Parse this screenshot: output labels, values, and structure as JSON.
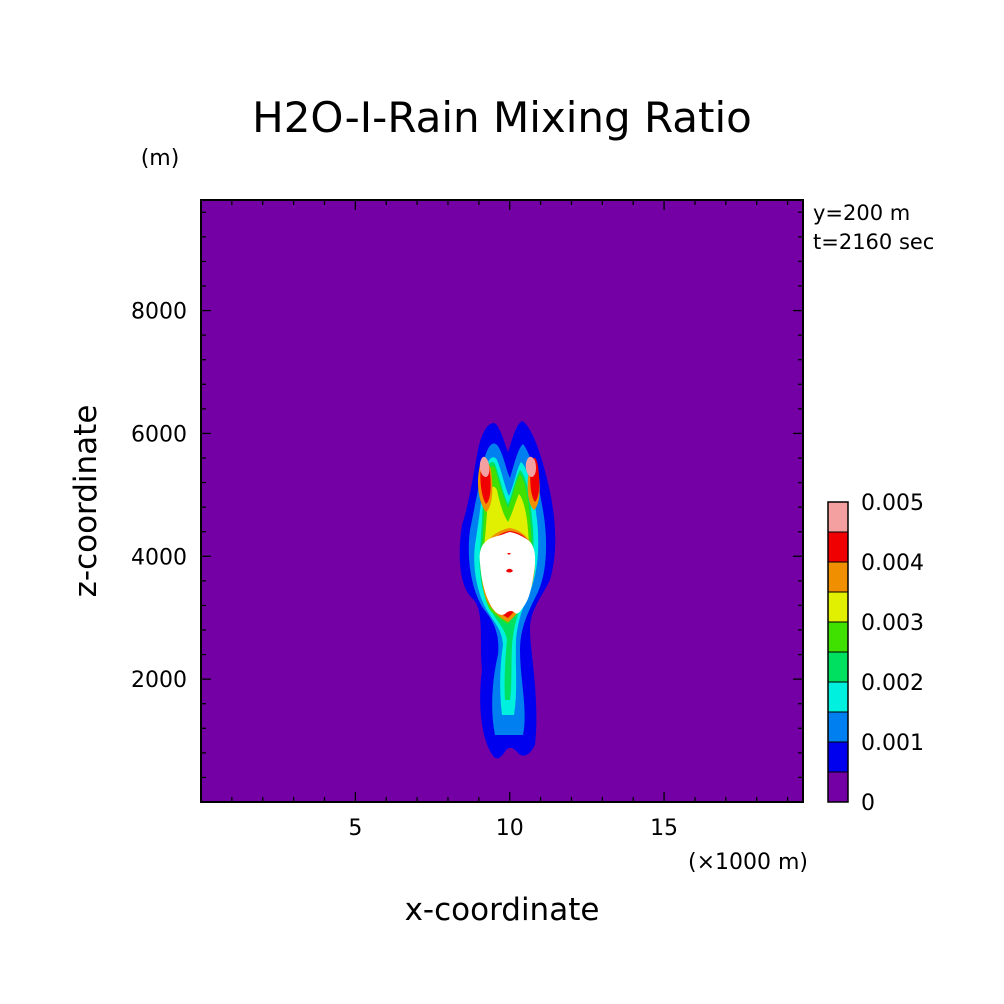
{
  "chart_data": {
    "type": "contour",
    "title": "H2O-I-Rain Mixing Ratio",
    "xlabel": "x-coordinate",
    "ylabel": "z-coordinate",
    "x_unit": "(×1000 m)",
    "y_unit": "(m)",
    "info_lines": [
      "y=200 m",
      "t=2160 sec"
    ],
    "xlim": [
      0,
      19.5
    ],
    "ylim": [
      0,
      9800
    ],
    "x_ticks": [
      5,
      10,
      15
    ],
    "y_ticks": [
      2000,
      4000,
      6000,
      8000
    ],
    "x_minor_step": 1,
    "y_minor_step": 400,
    "background_color": "#7400a5",
    "levels": [
      {
        "value": 0.0005,
        "color": "#0000ee"
      },
      {
        "value": 0.001,
        "color": "#0080f0"
      },
      {
        "value": 0.0015,
        "color": "#00f0e0"
      },
      {
        "value": 0.002,
        "color": "#00e060"
      },
      {
        "value": 0.0025,
        "color": "#40e000"
      },
      {
        "value": 0.003,
        "color": "#e0f000"
      },
      {
        "value": 0.0035,
        "color": "#f09000"
      },
      {
        "value": 0.004,
        "color": "#f00000"
      },
      {
        "value": 0.0045,
        "color": "#f4a0a0"
      },
      {
        "value": 0.005,
        "color": "#ffffff"
      }
    ],
    "legend": {
      "tick_labels": [
        "0",
        "0.001",
        "0.002",
        "0.003",
        "0.004",
        "0.005"
      ],
      "tick_values": [
        0,
        0.001,
        0.002,
        0.003,
        0.004,
        0.005
      ],
      "colors": [
        "#7400a5",
        "#0000ee",
        "#0080f0",
        "#00f0e0",
        "#00e060",
        "#40e000",
        "#e0f000",
        "#f09000",
        "#f00000",
        "#f4a0a0"
      ]
    },
    "features": [
      {
        "name": "rain shaft",
        "x_center": 10.2,
        "z_bottom": 800,
        "z_top": 3000,
        "max_value": 0.002
      },
      {
        "name": "core",
        "x_center": 10.2,
        "z_bottom": 2900,
        "z_top": 4600,
        "max_value": 0.005
      },
      {
        "name": "left lobe",
        "x_center": 9.3,
        "z_bottom": 4500,
        "z_top": 6300,
        "max_value": 0.0045
      },
      {
        "name": "right lobe",
        "x_center": 11.0,
        "z_bottom": 4500,
        "z_top": 6300,
        "max_value": 0.0045
      }
    ]
  }
}
